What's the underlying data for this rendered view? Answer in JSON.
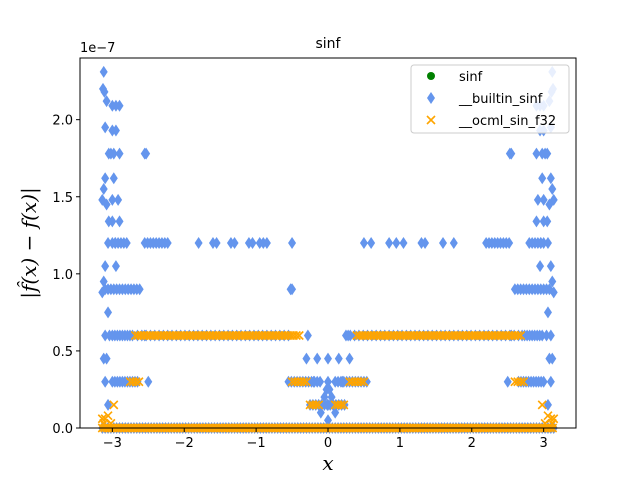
{
  "chart_data": {
    "type": "scatter",
    "title": "sinf",
    "xlabel": "x",
    "ylabel": "|f̂(x) − f(x)|",
    "offset_text": "1e−7",
    "xlim": [
      -3.45,
      3.45
    ],
    "ylim": [
      0,
      2.4
    ],
    "y_scale_factor": 1e-07,
    "x_ticks": [
      -3,
      -2,
      -1,
      0,
      1,
      2,
      3
    ],
    "x_tick_labels": [
      "−3",
      "−2",
      "−1",
      "0",
      "1",
      "2",
      "3"
    ],
    "y_ticks": [
      0.0,
      0.5,
      1.0,
      1.5,
      2.0
    ],
    "y_tick_labels": [
      "0.0",
      "0.5",
      "1.0",
      "1.5",
      "2.0"
    ],
    "legend_position": "top-right",
    "grid": false,
    "series": [
      {
        "name": "sinf",
        "marker": "circle",
        "color": "#008000",
        "points": []
      },
      {
        "name": "__builtin_sinf",
        "marker": "diamond",
        "color": "#6495ed",
        "segments": [
          {
            "y": 0.0,
            "x_from": -3.14,
            "x_to": 3.14,
            "step": 0.04
          },
          {
            "y": 0.6,
            "x_from": -3.0,
            "x_to": -2.7,
            "step": 0.035
          },
          {
            "y": 0.6,
            "x_from": -2.65,
            "x_to": -0.55,
            "step": 0.06
          },
          {
            "y": 0.6,
            "x_from": 0.25,
            "x_to": 2.65,
            "step": 0.06
          },
          {
            "y": 0.6,
            "x_from": 2.7,
            "x_to": 3.0,
            "step": 0.035
          },
          {
            "y": 0.3,
            "x_from": -3.0,
            "x_to": -2.65,
            "step": 0.035
          },
          {
            "y": 0.3,
            "x_from": -0.55,
            "x_to": -0.1,
            "step": 0.04
          },
          {
            "y": 0.3,
            "x_from": 0.1,
            "x_to": 0.55,
            "step": 0.04
          },
          {
            "y": 0.3,
            "x_from": 2.65,
            "x_to": 3.0,
            "step": 0.035
          },
          {
            "y": 1.2,
            "x_from": -3.0,
            "x_to": -2.8,
            "step": 0.04
          },
          {
            "y": 1.2,
            "x_from": -2.55,
            "x_to": -2.2,
            "step": 0.04
          },
          {
            "y": 1.2,
            "x_from": 2.2,
            "x_to": 2.55,
            "step": 0.04
          },
          {
            "y": 1.2,
            "x_from": 2.8,
            "x_to": 3.0,
            "step": 0.04
          },
          {
            "y": 0.9,
            "x_from": -3.1,
            "x_to": -2.6,
            "step": 0.04
          },
          {
            "y": 0.9,
            "x_from": 2.6,
            "x_to": 3.1,
            "step": 0.04
          },
          {
            "y": 0.15,
            "x_from": -0.25,
            "x_to": 0.25,
            "step": 0.04
          }
        ],
        "points": [
          [
            -3.12,
            2.31
          ],
          [
            -3.11,
            2.18
          ],
          [
            -3.13,
            2.2
          ],
          [
            -3.08,
            2.12
          ],
          [
            -3.1,
            1.95
          ],
          [
            -3.05,
            1.78
          ],
          [
            -3.02,
            1.78
          ],
          [
            -2.98,
            1.78
          ],
          [
            -3.1,
            1.62
          ],
          [
            -3.12,
            1.55
          ],
          [
            -3.14,
            1.48
          ],
          [
            -3.08,
            1.45
          ],
          [
            -3.0,
            1.48
          ],
          [
            -3.05,
            1.34
          ],
          [
            -3.0,
            1.34
          ],
          [
            -3.06,
            1.2
          ],
          [
            -3.1,
            1.05
          ],
          [
            -3.12,
            0.95
          ],
          [
            -3.14,
            0.88
          ],
          [
            -3.06,
            0.75
          ],
          [
            -3.1,
            0.6
          ],
          [
            -3.08,
            0.45
          ],
          [
            -3.12,
            0.45
          ],
          [
            -3.04,
            0.6
          ],
          [
            -3.0,
            2.09
          ],
          [
            -2.95,
            2.09
          ],
          [
            -2.9,
            2.09
          ],
          [
            -3.0,
            1.93
          ],
          [
            -2.95,
            1.93
          ],
          [
            -2.98,
            1.62
          ],
          [
            -2.96,
            1.2
          ],
          [
            -2.9,
            1.78
          ],
          [
            -2.92,
            1.48
          ],
          [
            -2.95,
            1.05
          ],
          [
            -2.9,
            1.34
          ],
          [
            -2.55,
            1.78
          ],
          [
            -2.53,
            1.78
          ],
          [
            -2.5,
            0.3
          ],
          [
            -2.55,
            0.6
          ],
          [
            -1.6,
            1.2
          ],
          [
            -1.55,
            1.2
          ],
          [
            -1.35,
            1.2
          ],
          [
            -1.3,
            1.2
          ],
          [
            -1.05,
            1.2
          ],
          [
            -0.95,
            1.2
          ],
          [
            -0.9,
            1.2
          ],
          [
            -0.85,
            1.2
          ],
          [
            -0.5,
            1.2
          ],
          [
            -0.52,
            0.9
          ],
          [
            -0.5,
            0.9
          ],
          [
            -1.1,
            1.2
          ],
          [
            0.5,
            1.2
          ],
          [
            0.6,
            1.2
          ],
          [
            0.85,
            1.2
          ],
          [
            0.95,
            1.2
          ],
          [
            1.05,
            1.2
          ],
          [
            1.3,
            1.2
          ],
          [
            1.35,
            1.2
          ],
          [
            1.6,
            1.2
          ],
          [
            1.75,
            1.2
          ],
          [
            -1.8,
            1.2
          ],
          [
            -0.15,
            0.45
          ],
          [
            0.15,
            0.45
          ],
          [
            0.0,
            0.3
          ],
          [
            -0.05,
            0.2
          ],
          [
            0.05,
            0.2
          ],
          [
            -0.1,
            0.1
          ],
          [
            0.1,
            0.1
          ],
          [
            0.0,
            0.05
          ],
          [
            -0.3,
            0.45
          ],
          [
            0.3,
            0.45
          ],
          [
            -0.28,
            0.6
          ],
          [
            0.28,
            0.6
          ],
          [
            0.0,
            0.15
          ],
          [
            -0.02,
            0.25
          ],
          [
            0.02,
            0.25
          ],
          [
            0.0,
            0.45
          ],
          [
            -0.2,
            0.3
          ],
          [
            0.2,
            0.3
          ],
          [
            2.55,
            1.78
          ],
          [
            2.53,
            1.78
          ],
          [
            2.5,
            0.3
          ],
          [
            2.55,
            0.6
          ],
          [
            3.12,
            2.31
          ],
          [
            3.11,
            2.18
          ],
          [
            3.13,
            2.2
          ],
          [
            3.08,
            2.12
          ],
          [
            3.1,
            1.95
          ],
          [
            3.05,
            1.78
          ],
          [
            3.02,
            1.78
          ],
          [
            2.98,
            1.78
          ],
          [
            3.1,
            1.62
          ],
          [
            3.12,
            1.55
          ],
          [
            3.14,
            1.48
          ],
          [
            3.08,
            1.45
          ],
          [
            3.0,
            1.48
          ],
          [
            3.05,
            1.34
          ],
          [
            3.0,
            1.34
          ],
          [
            3.06,
            1.2
          ],
          [
            3.1,
            1.05
          ],
          [
            3.12,
            0.95
          ],
          [
            3.14,
            0.88
          ],
          [
            3.06,
            0.75
          ],
          [
            3.1,
            0.6
          ],
          [
            3.08,
            0.45
          ],
          [
            3.12,
            0.45
          ],
          [
            3.04,
            0.6
          ],
          [
            3.0,
            2.09
          ],
          [
            2.95,
            2.09
          ],
          [
            2.9,
            2.09
          ],
          [
            3.0,
            1.93
          ],
          [
            2.95,
            1.93
          ],
          [
            2.98,
            1.62
          ],
          [
            2.96,
            1.2
          ],
          [
            2.9,
            1.78
          ],
          [
            2.92,
            1.48
          ],
          [
            2.95,
            1.05
          ],
          [
            2.9,
            1.34
          ],
          [
            -3.06,
            0.15
          ],
          [
            3.06,
            0.15
          ],
          [
            -3.1,
            0.3
          ],
          [
            3.1,
            0.3
          ]
        ]
      },
      {
        "name": "__ocml_sin_f32",
        "marker": "x",
        "color": "#ffa500",
        "segments": [
          {
            "y": 0.0,
            "x_from": -3.14,
            "x_to": 3.14,
            "step": 0.035
          },
          {
            "y": 0.6,
            "x_from": -2.68,
            "x_to": -0.4,
            "step": 0.04
          },
          {
            "y": 0.6,
            "x_from": 0.4,
            "x_to": 2.68,
            "step": 0.04
          },
          {
            "y": 0.3,
            "x_from": -2.75,
            "x_to": -2.6,
            "step": 0.04
          },
          {
            "y": 0.3,
            "x_from": 2.6,
            "x_to": 2.75,
            "step": 0.04
          },
          {
            "y": 0.3,
            "x_from": -0.5,
            "x_to": -0.3,
            "step": 0.04
          },
          {
            "y": 0.3,
            "x_from": 0.3,
            "x_to": 0.5,
            "step": 0.04
          },
          {
            "y": 0.15,
            "x_from": -0.25,
            "x_to": -0.1,
            "step": 0.04
          },
          {
            "y": 0.15,
            "x_from": 0.1,
            "x_to": 0.25,
            "step": 0.04
          }
        ],
        "points": [
          [
            -3.12,
            0.03
          ],
          [
            -3.1,
            0.06
          ],
          [
            -3.06,
            0.08
          ],
          [
            -3.14,
            0.06
          ],
          [
            -3.02,
            0.03
          ],
          [
            3.12,
            0.03
          ],
          [
            3.1,
            0.06
          ],
          [
            3.06,
            0.08
          ],
          [
            3.14,
            0.06
          ],
          [
            3.02,
            0.03
          ],
          [
            -2.98,
            0.15
          ],
          [
            2.98,
            0.15
          ]
        ]
      }
    ]
  }
}
